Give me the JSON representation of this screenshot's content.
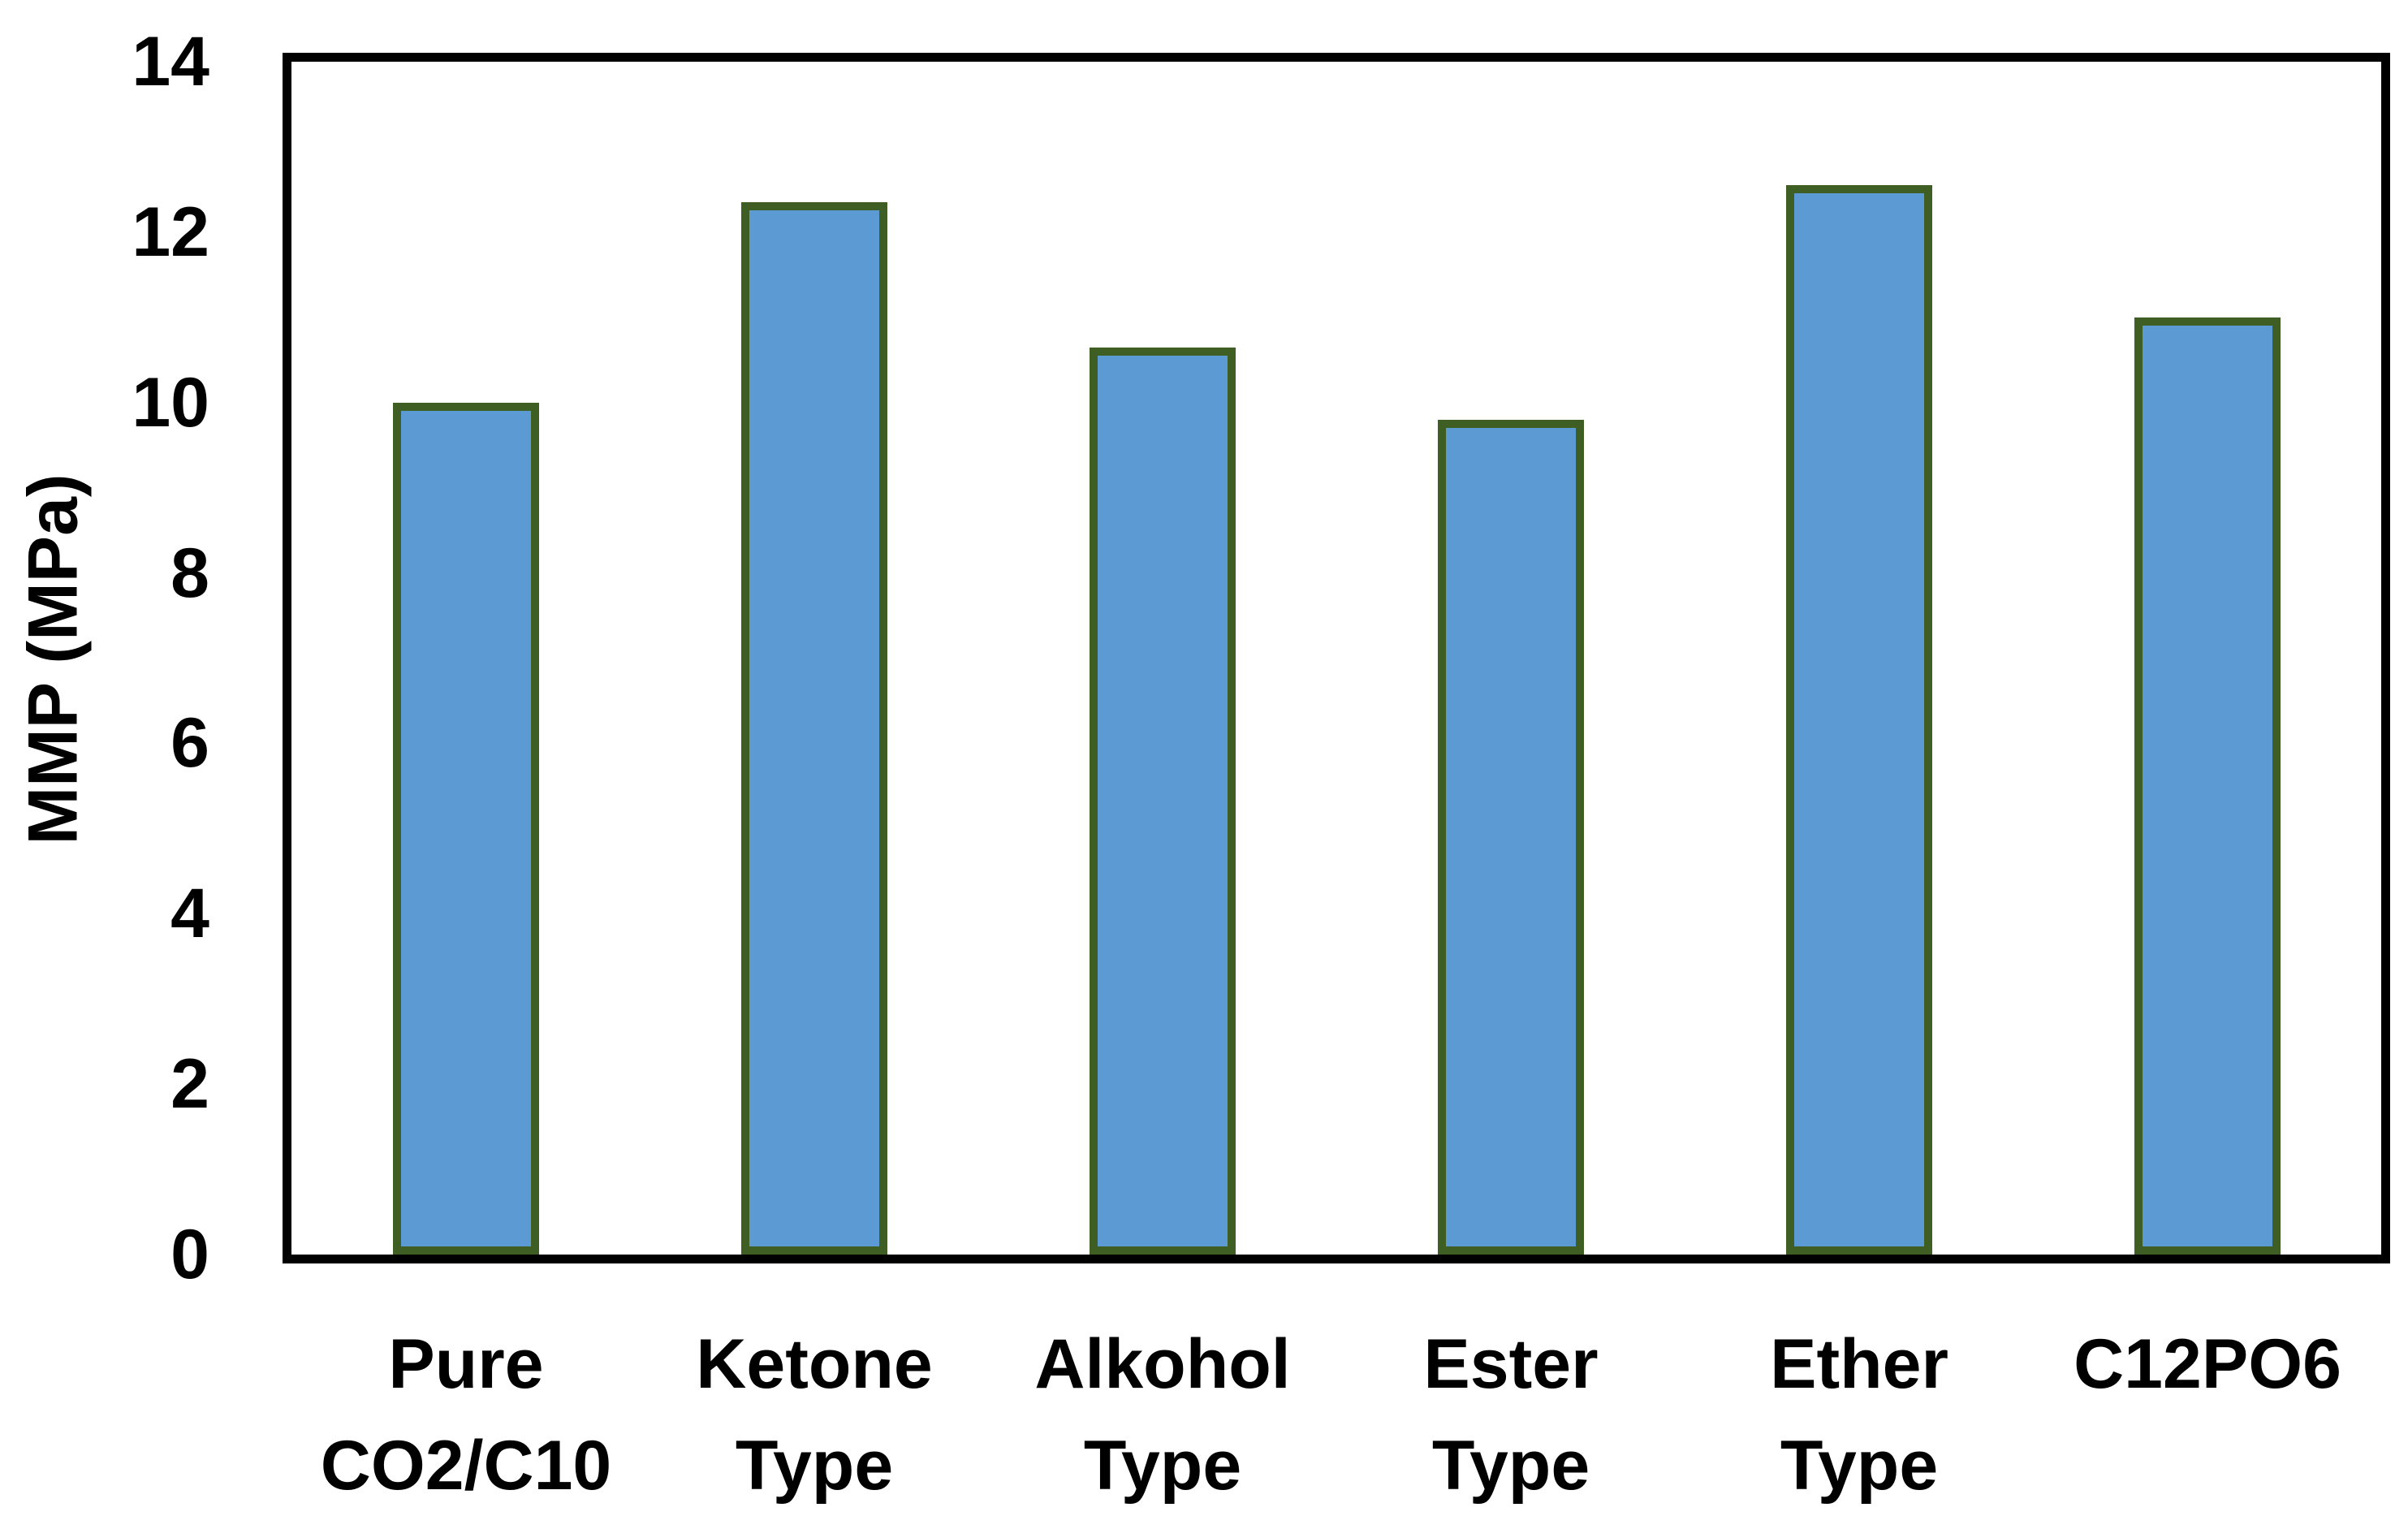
{
  "chart_data": {
    "type": "bar",
    "title": "",
    "xlabel": "",
    "ylabel": "MMP (MPa)",
    "categories": [
      "Pure CO2/C10",
      "Ketone Type",
      "Alkohol Type",
      "Ester Type",
      "Ether Type",
      "C12PO6"
    ],
    "category_lines": [
      [
        "Pure",
        "CO2/C10"
      ],
      [
        "Ketone",
        "Type"
      ],
      [
        "Alkohol",
        "Type"
      ],
      [
        "Ester",
        "Type"
      ],
      [
        "Ether",
        "Type"
      ],
      [
        "C12PO6"
      ]
    ],
    "values": [
      10.0,
      12.35,
      10.65,
      9.8,
      12.55,
      11.0
    ],
    "ylim": [
      0,
      14
    ],
    "yticks": [
      0,
      2,
      4,
      6,
      8,
      10,
      12,
      14
    ],
    "grid": false,
    "legend": null,
    "colors": {
      "bar_fill": "#5b9ad3",
      "bar_border": "#3f5e23",
      "axis": "#000000",
      "background": "#ffffff"
    }
  }
}
